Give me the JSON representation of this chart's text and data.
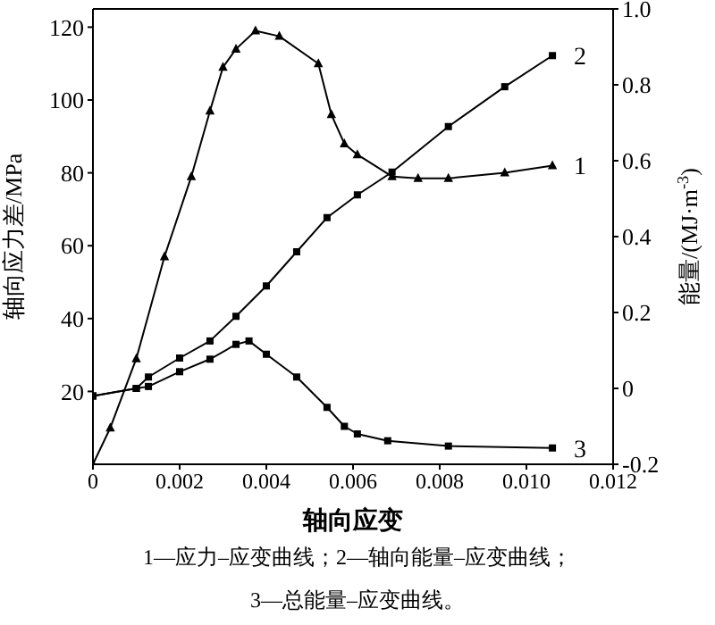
{
  "chart_data": {
    "type": "line",
    "xlabel": "轴向应变",
    "ylabel": "轴向应力差/MPa",
    "y2label": "能量/(MJ·m$^{-3}$)",
    "xlim": [
      0,
      0.012
    ],
    "xticks": [
      0,
      0.002,
      0.004,
      0.006,
      0.008,
      {
        "value": 0.01,
        "label": "0.010"
      },
      0.012
    ],
    "ylim": [
      0,
      125
    ],
    "yticks": [
      20,
      40,
      60,
      80,
      100,
      120
    ],
    "y2lim": [
      -0.2,
      1.0
    ],
    "y2ticks": [
      {
        "value": 1,
        "label": "1.0"
      },
      0.8,
      0.6,
      0.4,
      0.2,
      0,
      -0.2
    ],
    "line_style": "solid",
    "series": [
      {
        "name": "1",
        "color": "#000000",
        "marker": "triangle",
        "x": [
          0,
          0.0004,
          0.001,
          0.00165,
          0.00227,
          0.0027,
          0.003,
          0.0033,
          0.00375,
          0.0043,
          0.0052,
          0.0055,
          0.0058,
          0.0061,
          0.0069,
          0.0075,
          0.0082,
          0.0095,
          0.0106
        ],
        "values": [
          0,
          10,
          29,
          57,
          79,
          97,
          109,
          114,
          119,
          117.5,
          110,
          96,
          88,
          85,
          79,
          78.5,
          78.5,
          80,
          82
        ]
      },
      {
        "name": "2",
        "color": "#000000",
        "marker": "square",
        "axis": "y2",
        "x": [
          0,
          0.001,
          0.00128,
          0.002,
          0.0027,
          0.0033,
          0.004,
          0.0047,
          0.0054,
          0.0061,
          0.0069,
          0.0082,
          0.0095,
          0.0106
        ],
        "values": [
          -0.02,
          0,
          0.03,
          0.08,
          0.125,
          0.19,
          0.27,
          0.36,
          0.45,
          0.51,
          0.57,
          0.69,
          0.795,
          0.877
        ]
      },
      {
        "name": "3",
        "color": "#000000",
        "marker": "square",
        "axis": "y2",
        "x": [
          0,
          0.001,
          0.00128,
          0.002,
          0.0027,
          0.0033,
          0.0036,
          0.004,
          0.0047,
          0.0054,
          0.0058,
          0.0061,
          0.0068,
          0.0082,
          0.0106
        ],
        "values": [
          -0.02,
          0,
          0.005,
          0.044,
          0.077,
          0.116,
          0.125,
          0.09,
          0.03,
          -0.05,
          -0.1,
          -0.12,
          -0.138,
          -0.152,
          -0.157
        ]
      }
    ],
    "annotations": [
      "1—应力–应变曲线；2—轴向能量–应变曲线；",
      "3—总能量–应变曲线。"
    ]
  }
}
